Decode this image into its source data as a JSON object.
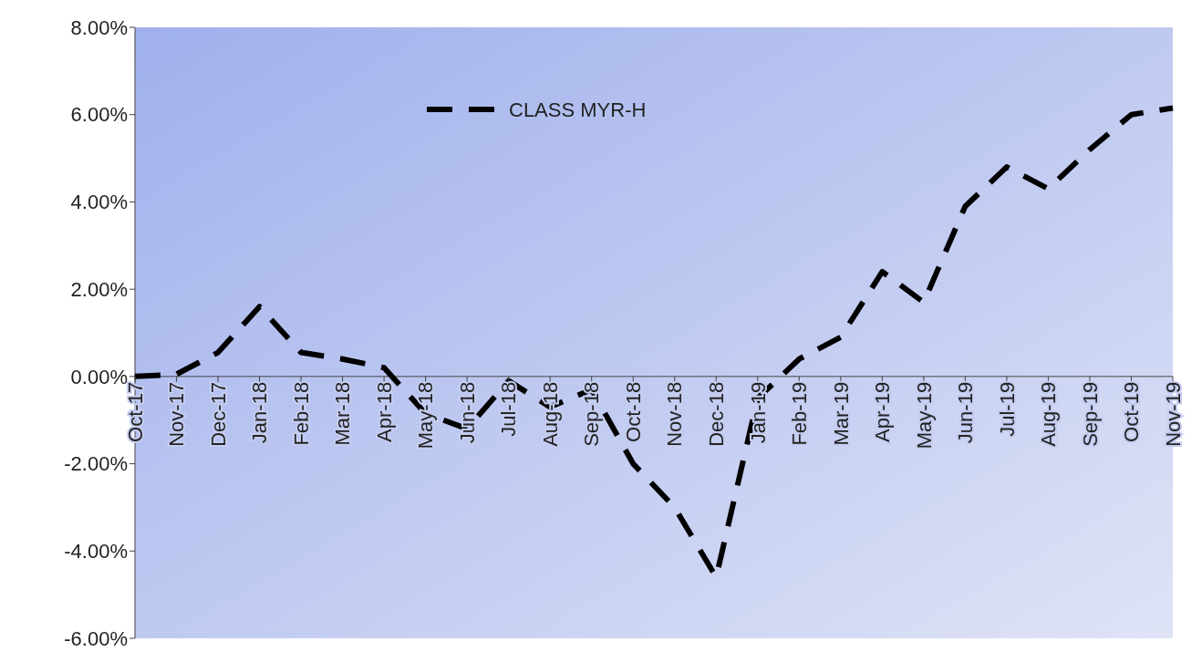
{
  "chart_data": {
    "type": "line",
    "categories": [
      "Oct-17",
      "Nov-17",
      "Dec-17",
      "Jan-18",
      "Feb-18",
      "Mar-18",
      "Apr-18",
      "May-18",
      "Jun-18",
      "Jul-18",
      "Aug-18",
      "Sep-18",
      "Oct-18",
      "Nov-18",
      "Dec-18",
      "Jan-19",
      "Feb-19",
      "Mar-19",
      "Apr-19",
      "May-19",
      "Jun-19",
      "Jul-19",
      "Aug-19",
      "Sep-19",
      "Oct-19",
      "Nov-19"
    ],
    "series": [
      {
        "name": "CLASS MYR-H",
        "color": "#000000",
        "values": [
          0,
          0.05,
          0.55,
          1.6,
          0.55,
          0.4,
          0.2,
          -0.85,
          -1.2,
          -0.1,
          -0.7,
          -0.3,
          -2.0,
          -3.0,
          -4.6,
          -0.5,
          0.4,
          0.9,
          2.4,
          1.7,
          3.9,
          4.8,
          4.3,
          5.2,
          6.0,
          6.15
        ]
      }
    ],
    "ylim": [
      -6,
      8
    ],
    "yticks": [
      {
        "value": -6,
        "label": "-6.00%"
      },
      {
        "value": -4,
        "label": "-4.00%"
      },
      {
        "value": -2,
        "label": "-2.00%"
      },
      {
        "value": 0,
        "label": "0.00%"
      },
      {
        "value": 2,
        "label": "2.00%"
      },
      {
        "value": 4,
        "label": "4.00%"
      },
      {
        "value": 6,
        "label": "6.00%"
      },
      {
        "value": 8,
        "label": "8.00%"
      }
    ],
    "line_style": "dashed",
    "marker": "none",
    "legend": "top left",
    "grid": false
  }
}
